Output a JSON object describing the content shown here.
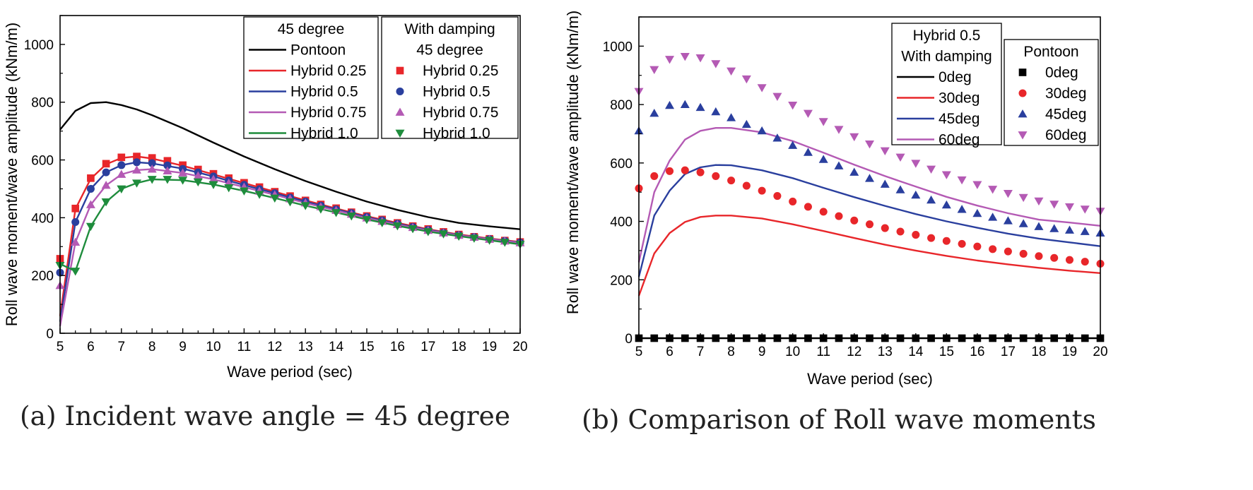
{
  "chart_data": [
    {
      "type": "line",
      "panel": "a",
      "caption": "(a) Incident wave angle = 45 degree",
      "xlabel": "Wave period (sec)",
      "ylabel": "Roll wave moment/wave amplitude (kNm/m)",
      "xlim": [
        5,
        20
      ],
      "ylim": [
        0,
        1100
      ],
      "xticks": [
        5,
        6,
        7,
        8,
        9,
        10,
        11,
        12,
        13,
        14,
        15,
        16,
        17,
        18,
        19,
        20
      ],
      "yticks": [
        0,
        200,
        400,
        600,
        800,
        1000
      ],
      "legend_lines_title": "45 degree",
      "legend_markers_title": [
        "With damping",
        "45 degree"
      ],
      "lines": [
        {
          "name": "Pontoon",
          "color": "#000000",
          "x": [
            5,
            5.5,
            6,
            6.5,
            7,
            7.5,
            8,
            9,
            10,
            11,
            12,
            13,
            14,
            15,
            16,
            17,
            18,
            19,
            20
          ],
          "y": [
            705,
            770,
            797,
            800,
            790,
            775,
            755,
            710,
            660,
            612,
            568,
            527,
            490,
            456,
            427,
            402,
            382,
            370,
            360
          ]
        },
        {
          "name": "Hybrid 0.25",
          "color": "#e8262a",
          "x": [
            5,
            5.5,
            6,
            6.5,
            7,
            7.5,
            8,
            9,
            10,
            11,
            12,
            13,
            14,
            15,
            16,
            17,
            18,
            19,
            20
          ],
          "y": [
            60,
            430,
            535,
            585,
            607,
            612,
            605,
            580,
            550,
            520,
            490,
            460,
            432,
            405,
            382,
            360,
            342,
            328,
            316
          ]
        },
        {
          "name": "Hybrid 0.5",
          "color": "#2a3f9e",
          "x": [
            5,
            5.5,
            6,
            6.5,
            7,
            7.5,
            8,
            9,
            10,
            11,
            12,
            13,
            14,
            15,
            16,
            17,
            18,
            19,
            20
          ],
          "y": [
            40,
            385,
            500,
            557,
            582,
            592,
            588,
            570,
            543,
            513,
            485,
            456,
            429,
            402,
            379,
            358,
            340,
            326,
            314
          ]
        },
        {
          "name": "Hybrid 0.75",
          "color": "#b45ab4",
          "x": [
            5,
            5.5,
            6,
            6.5,
            7,
            7.5,
            8,
            9,
            10,
            11,
            12,
            13,
            14,
            15,
            16,
            17,
            18,
            19,
            20
          ],
          "y": [
            25,
            315,
            445,
            512,
            550,
            565,
            568,
            555,
            533,
            506,
            479,
            451,
            425,
            399,
            376,
            356,
            339,
            325,
            313
          ]
        },
        {
          "name": "Hybrid 1.0",
          "color": "#1e8c3c",
          "x": [
            5,
            5.5,
            6,
            6.5,
            7,
            7.5,
            8,
            9,
            10,
            11,
            12,
            13,
            14,
            15,
            16,
            17,
            18,
            19,
            20
          ],
          "y": [
            240,
            215,
            370,
            455,
            500,
            520,
            533,
            530,
            515,
            493,
            468,
            442,
            418,
            394,
            372,
            352,
            336,
            322,
            308
          ]
        }
      ],
      "markers": [
        {
          "name": "Hybrid 0.25",
          "shape": "square",
          "color": "#e8262a",
          "x": [
            5,
            5.5,
            6,
            6.5,
            7,
            7.5,
            8,
            8.5,
            9,
            9.5,
            10,
            10.5,
            11,
            11.5,
            12,
            12.5,
            13,
            13.5,
            14,
            14.5,
            15,
            15.5,
            16,
            16.5,
            17,
            17.5,
            18,
            18.5,
            19,
            19.5,
            20
          ],
          "y": [
            258,
            432,
            537,
            587,
            609,
            612,
            607,
            597,
            582,
            567,
            552,
            537,
            521,
            506,
            490,
            475,
            460,
            446,
            433,
            419,
            406,
            394,
            382,
            371,
            361,
            351,
            342,
            334,
            327,
            321,
            316
          ]
        },
        {
          "name": "Hybrid 0.5",
          "shape": "circle",
          "color": "#2a3f9e",
          "x": [
            5,
            5.5,
            6,
            6.5,
            7,
            7.5,
            8,
            8.5,
            9,
            9.5,
            10,
            10.5,
            11,
            11.5,
            12,
            12.5,
            13,
            13.5,
            14,
            14.5,
            15,
            15.5,
            16,
            16.5,
            17,
            17.5,
            18,
            18.5,
            19,
            19.5,
            20
          ],
          "y": [
            210,
            385,
            500,
            557,
            582,
            592,
            589,
            581,
            569,
            557,
            543,
            529,
            514,
            499,
            485,
            470,
            456,
            442,
            429,
            416,
            403,
            391,
            379,
            368,
            358,
            348,
            340,
            333,
            326,
            320,
            314
          ]
        },
        {
          "name": "Hybrid 0.75",
          "shape": "triangle-up",
          "color": "#b45ab4",
          "x": [
            5,
            5.5,
            6,
            6.5,
            7,
            7.5,
            8,
            8.5,
            9,
            9.5,
            10,
            10.5,
            11,
            11.5,
            12,
            12.5,
            13,
            13.5,
            14,
            14.5,
            15,
            15.5,
            16,
            16.5,
            17,
            17.5,
            18,
            18.5,
            19,
            19.5,
            20
          ],
          "y": [
            165,
            315,
            445,
            512,
            550,
            565,
            568,
            562,
            555,
            545,
            533,
            520,
            506,
            492,
            479,
            465,
            451,
            438,
            425,
            412,
            399,
            387,
            376,
            366,
            356,
            347,
            339,
            332,
            325,
            319,
            313
          ]
        },
        {
          "name": "Hybrid 1.0",
          "shape": "triangle-down",
          "color": "#1e8c3c",
          "x": [
            5,
            5.5,
            6,
            6.5,
            7,
            7.5,
            8,
            8.5,
            9,
            9.5,
            10,
            10.5,
            11,
            11.5,
            12,
            12.5,
            13,
            13.5,
            14,
            14.5,
            15,
            15.5,
            16,
            16.5,
            17,
            17.5,
            18,
            18.5,
            19,
            19.5,
            20
          ],
          "y": [
            235,
            215,
            370,
            455,
            500,
            520,
            533,
            533,
            530,
            524,
            515,
            504,
            493,
            481,
            468,
            455,
            442,
            430,
            418,
            406,
            394,
            383,
            372,
            362,
            352,
            344,
            336,
            329,
            322,
            315,
            308
          ]
        }
      ]
    },
    {
      "type": "line",
      "panel": "b",
      "caption": "(b) Comparison of Roll wave moments",
      "xlabel": "Wave period (sec)",
      "ylabel": "Roll wave moment/wave amplitude (kNm/m)",
      "xlim": [
        5,
        20
      ],
      "ylim": [
        0,
        1100
      ],
      "xticks": [
        5,
        6,
        7,
        8,
        9,
        10,
        11,
        12,
        13,
        14,
        15,
        16,
        17,
        18,
        19,
        20
      ],
      "yticks": [
        0,
        200,
        400,
        600,
        800,
        1000
      ],
      "legend_lines_title": [
        "Hybrid 0.5",
        "With damping"
      ],
      "legend_markers_title": "Pontoon",
      "lines": [
        {
          "name": "0deg",
          "color": "#000000",
          "x": [
            5,
            20
          ],
          "y": [
            0,
            0
          ]
        },
        {
          "name": "30deg",
          "color": "#e8262a",
          "x": [
            5,
            5.5,
            6,
            6.5,
            7,
            7.5,
            8,
            9,
            10,
            11,
            12,
            13,
            14,
            15,
            16,
            17,
            18,
            19,
            20
          ],
          "y": [
            145,
            290,
            360,
            398,
            415,
            420,
            420,
            410,
            390,
            367,
            343,
            320,
            300,
            282,
            266,
            253,
            241,
            231,
            223
          ]
        },
        {
          "name": "45deg",
          "color": "#2a3f9e",
          "x": [
            5,
            5.5,
            6,
            6.5,
            7,
            7.5,
            8,
            9,
            10,
            11,
            12,
            13,
            14,
            15,
            16,
            17,
            18,
            19,
            20
          ],
          "y": [
            210,
            420,
            505,
            562,
            585,
            593,
            592,
            575,
            548,
            515,
            483,
            453,
            425,
            400,
            378,
            358,
            341,
            328,
            315
          ]
        },
        {
          "name": "60deg",
          "color": "#b45ab4",
          "x": [
            5,
            5.5,
            6,
            6.5,
            7,
            7.5,
            8,
            9,
            10,
            11,
            12,
            13,
            14,
            15,
            16,
            17,
            18,
            19,
            20
          ],
          "y": [
            260,
            500,
            608,
            680,
            710,
            720,
            720,
            705,
            675,
            635,
            594,
            555,
            519,
            484,
            454,
            428,
            406,
            396,
            385
          ]
        }
      ],
      "markers": [
        {
          "name": "0deg",
          "shape": "square",
          "color": "#000000",
          "x": [
            5,
            5.5,
            6,
            6.5,
            7,
            7.5,
            8,
            8.5,
            9,
            9.5,
            10,
            10.5,
            11,
            11.5,
            12,
            12.5,
            13,
            13.5,
            14,
            14.5,
            15,
            15.5,
            16,
            16.5,
            17,
            17.5,
            18,
            18.5,
            19,
            19.5,
            20
          ],
          "y": [
            0,
            0,
            0,
            0,
            0,
            0,
            0,
            0,
            0,
            0,
            0,
            0,
            0,
            0,
            0,
            0,
            0,
            0,
            0,
            0,
            0,
            0,
            0,
            0,
            0,
            0,
            0,
            0,
            0,
            0,
            0
          ]
        },
        {
          "name": "30deg",
          "shape": "circle",
          "color": "#e8262a",
          "x": [
            5,
            5.5,
            6,
            6.5,
            7,
            7.5,
            8,
            8.5,
            9,
            9.5,
            10,
            10.5,
            11,
            11.5,
            12,
            12.5,
            13,
            13.5,
            14,
            14.5,
            15,
            15.5,
            16,
            16.5,
            17,
            17.5,
            18,
            18.5,
            19,
            19.5,
            20
          ],
          "y": [
            513,
            555,
            572,
            575,
            568,
            555,
            540,
            522,
            505,
            487,
            468,
            450,
            433,
            418,
            403,
            390,
            377,
            365,
            354,
            343,
            333,
            323,
            314,
            305,
            297,
            289,
            281,
            275,
            268,
            262,
            255
          ]
        },
        {
          "name": "45deg",
          "shape": "triangle-up",
          "color": "#2a3f9e",
          "x": [
            5,
            5.5,
            6,
            6.5,
            7,
            7.5,
            8,
            8.5,
            9,
            9.5,
            10,
            10.5,
            11,
            11.5,
            12,
            12.5,
            13,
            13.5,
            14,
            14.5,
            15,
            15.5,
            16,
            16.5,
            17,
            17.5,
            18,
            18.5,
            19,
            19.5,
            20
          ],
          "y": [
            710,
            770,
            797,
            800,
            790,
            775,
            755,
            732,
            710,
            685,
            660,
            636,
            612,
            590,
            568,
            547,
            527,
            508,
            490,
            473,
            456,
            441,
            427,
            414,
            402,
            392,
            382,
            375,
            370,
            365,
            360
          ]
        },
        {
          "name": "60deg",
          "shape": "triangle-down",
          "color": "#b45ab4",
          "x": [
            5,
            5.5,
            6,
            6.5,
            7,
            7.5,
            8,
            8.5,
            9,
            9.5,
            10,
            10.5,
            11,
            11.5,
            12,
            12.5,
            13,
            13.5,
            14,
            14.5,
            15,
            15.5,
            16,
            16.5,
            17,
            17.5,
            18,
            18.5,
            19,
            19.5,
            20
          ],
          "y": [
            845,
            920,
            955,
            965,
            960,
            940,
            915,
            888,
            858,
            828,
            798,
            770,
            742,
            715,
            690,
            665,
            642,
            620,
            599,
            579,
            560,
            542,
            526,
            510,
            496,
            482,
            470,
            459,
            450,
            442,
            435
          ]
        }
      ]
    }
  ]
}
